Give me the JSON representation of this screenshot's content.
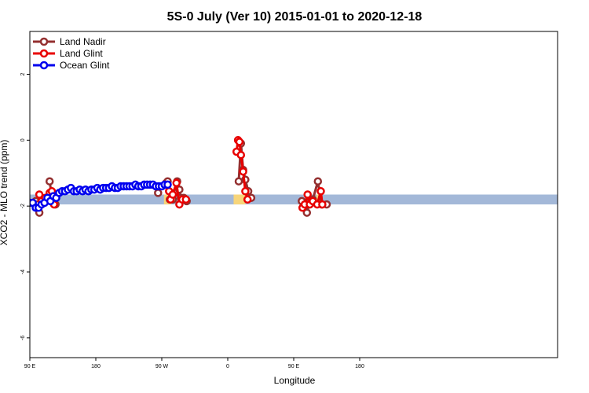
{
  "chart_data": {
    "type": "line",
    "title": "5S-0 July (Ver 10)   2015-01-01 to 2020-12-18",
    "xlabel": "Longitude",
    "ylabel": "XCO2 - MLO trend (ppm)",
    "xlim": [
      90,
      450
    ],
    "ylim": [
      -6.6,
      3.3
    ],
    "x_ticks": [
      {
        "value": 90,
        "label": "90 E"
      },
      {
        "value": 180,
        "label": "180"
      },
      {
        "value": 270,
        "label": "90 W"
      },
      {
        "value": 360,
        "label": "0"
      },
      {
        "value": 450,
        "label": "90 E"
      },
      {
        "value": 540,
        "label": "180"
      }
    ],
    "y_ticks": [
      {
        "value": 2,
        "label": "2"
      },
      {
        "value": 0,
        "label": "0"
      },
      {
        "value": -2,
        "label": "-2"
      },
      {
        "value": -4,
        "label": "-4"
      },
      {
        "value": -6,
        "label": "-6"
      }
    ],
    "x_display_scale": 2,
    "band": {
      "y_low": -1.95,
      "y_high": -1.65,
      "color": "#a3b8d8",
      "highlight_color": "#f7d57a",
      "highlight_ranges": [
        [
          273,
          283
        ],
        [
          368,
          384
        ],
        [
          481,
          487
        ]
      ]
    },
    "legend": {
      "placement": "top-left",
      "entries": [
        {
          "name": "Land Nadir",
          "color": "#943030"
        },
        {
          "name": "Land Glint",
          "color": "#e80000"
        },
        {
          "name": "Ocean Glint",
          "color": "#0000ee"
        }
      ]
    },
    "series": [
      {
        "name": "Land Nadir",
        "color": "#943030",
        "segments": [
          [
            [
              98,
              -1.85
            ],
            [
              100,
              -1.95
            ],
            [
              103,
              -2.2
            ],
            [
              106,
              -1.95
            ],
            [
              109,
              -1.85
            ]
          ],
          [
            [
              117,
              -1.25
            ],
            [
              120,
              -1.7
            ],
            [
              125,
              -1.95
            ]
          ],
          [
            [
              265,
              -1.6
            ]
          ],
          [
            [
              276,
              -1.3
            ],
            [
              278,
              -1.25
            ],
            [
              281,
              -1.8
            ],
            [
              285,
              -1.8
            ],
            [
              288,
              -1.6
            ],
            [
              291,
              -1.25
            ],
            [
              294,
              -1.5
            ],
            [
              296,
              -1.75
            ],
            [
              300,
              -1.75
            ],
            [
              304,
              -1.85
            ]
          ],
          [
            [
              375,
              -1.25
            ],
            [
              378,
              -0.1
            ],
            [
              381,
              -0.9
            ],
            [
              384,
              -1.2
            ],
            [
              388,
              -1.55
            ],
            [
              392,
              -1.75
            ]
          ],
          [
            [
              461,
              -1.85
            ],
            [
              464,
              -2.0
            ],
            [
              468,
              -2.2
            ],
            [
              472,
              -1.85
            ],
            [
              476,
              -1.8
            ],
            [
              483,
              -1.25
            ],
            [
              488,
              -1.95
            ],
            [
              495,
              -1.95
            ]
          ]
        ]
      },
      {
        "name": "Land Glint",
        "color": "#e80000",
        "segments": [
          [
            [
              103,
              -1.65
            ],
            [
              106,
              -1.85
            ],
            [
              111,
              -1.75
            ]
          ],
          [
            [
              114,
              -1.8
            ],
            [
              117,
              -1.6
            ],
            [
              120,
              -1.55
            ],
            [
              123,
              -1.95
            ]
          ],
          [
            [
              276,
              -1.35
            ],
            [
              280,
              -1.55
            ],
            [
              282,
              -1.8
            ]
          ],
          [
            [
              285,
              -1.65
            ],
            [
              290,
              -1.3
            ],
            [
              294,
              -1.95
            ],
            [
              298,
              -1.8
            ],
            [
              303,
              -1.8
            ]
          ],
          [
            [
              372,
              -0.35
            ],
            [
              374,
              0.0
            ],
            [
              376,
              -0.05
            ],
            [
              378,
              -0.45
            ],
            [
              381,
              -0.95
            ],
            [
              384,
              -1.55
            ],
            [
              387,
              -1.8
            ]
          ],
          [
            [
              462,
              -2.05
            ],
            [
              465,
              -1.95
            ],
            [
              469,
              -1.65
            ],
            [
              472,
              -1.95
            ],
            [
              476,
              -1.85
            ],
            [
              482,
              -1.95
            ],
            [
              487,
              -1.55
            ],
            [
              489,
              -1.95
            ]
          ]
        ]
      },
      {
        "name": "Ocean Glint",
        "color": "#0000ee",
        "segments": [
          [
            [
              90,
              -1.9
            ],
            [
              94,
              -1.9
            ],
            [
              98,
              -2.05
            ],
            [
              102,
              -2.05
            ],
            [
              106,
              -1.95
            ],
            [
              110,
              -1.9
            ],
            [
              114,
              -1.75
            ],
            [
              118,
              -1.85
            ],
            [
              122,
              -1.7
            ],
            [
              126,
              -1.75
            ],
            [
              130,
              -1.6
            ],
            [
              134,
              -1.55
            ],
            [
              138,
              -1.55
            ],
            [
              142,
              -1.5
            ],
            [
              146,
              -1.45
            ],
            [
              150,
              -1.55
            ],
            [
              154,
              -1.55
            ],
            [
              158,
              -1.5
            ],
            [
              162,
              -1.55
            ],
            [
              166,
              -1.5
            ],
            [
              170,
              -1.55
            ],
            [
              174,
              -1.5
            ],
            [
              178,
              -1.5
            ],
            [
              182,
              -1.45
            ],
            [
              186,
              -1.5
            ],
            [
              190,
              -1.45
            ],
            [
              194,
              -1.45
            ],
            [
              198,
              -1.45
            ],
            [
              202,
              -1.4
            ],
            [
              206,
              -1.45
            ],
            [
              210,
              -1.45
            ],
            [
              214,
              -1.4
            ],
            [
              218,
              -1.4
            ],
            [
              222,
              -1.4
            ],
            [
              226,
              -1.4
            ],
            [
              230,
              -1.4
            ],
            [
              234,
              -1.35
            ],
            [
              238,
              -1.4
            ],
            [
              242,
              -1.4
            ],
            [
              246,
              -1.35
            ],
            [
              250,
              -1.35
            ],
            [
              254,
              -1.35
            ],
            [
              258,
              -1.35
            ],
            [
              262,
              -1.4
            ],
            [
              266,
              -1.4
            ],
            [
              270,
              -1.4
            ],
            [
              274,
              -1.35
            ],
            [
              278,
              -1.35
            ]
          ]
        ]
      }
    ]
  }
}
